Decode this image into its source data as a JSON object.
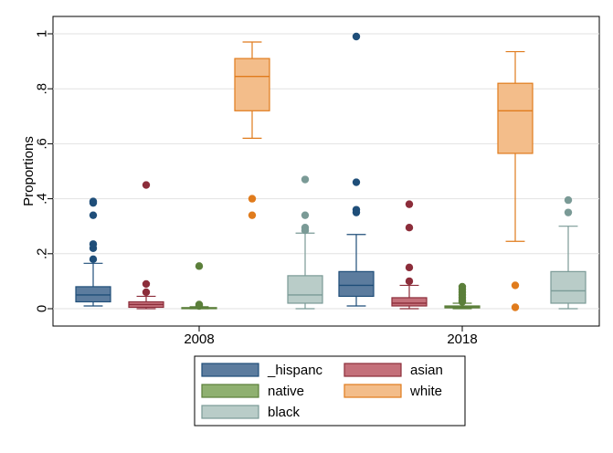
{
  "chart_data": {
    "type": "box",
    "ylabel": "Proportions",
    "ylim": [
      0,
      1
    ],
    "yticks": [
      {
        "value": 0,
        "label": "0"
      },
      {
        "value": 0.2,
        "label": ".2"
      },
      {
        "value": 0.4,
        "label": ".4"
      },
      {
        "value": 0.6,
        "label": ".6"
      },
      {
        "value": 0.8,
        "label": ".8"
      },
      {
        "value": 1,
        "label": "1"
      }
    ],
    "grid": true,
    "legend_position": "bottom",
    "categories": [
      "2008",
      "2018"
    ],
    "series": [
      {
        "name": "_hispanc",
        "color": "#1f4e79",
        "fill": "#5c7c9e",
        "boxes": [
          {
            "whisker_low": 0.01,
            "q1": 0.025,
            "median": 0.05,
            "q3": 0.08,
            "whisker_high": 0.165,
            "outliers": [
              0.18,
              0.22,
              0.235,
              0.34,
              0.385,
              0.39
            ]
          },
          {
            "whisker_low": 0.01,
            "q1": 0.045,
            "median": 0.085,
            "q3": 0.135,
            "whisker_high": 0.27,
            "outliers": [
              0.35,
              0.36,
              0.46,
              0.99
            ]
          }
        ]
      },
      {
        "name": "asian",
        "color": "#8c2d3a",
        "fill": "#c4707a",
        "boxes": [
          {
            "whisker_low": 0.0,
            "q1": 0.005,
            "median": 0.015,
            "q3": 0.025,
            "whisker_high": 0.045,
            "outliers": [
              0.06,
              0.09,
              0.45
            ]
          },
          {
            "whisker_low": 0.0,
            "q1": 0.01,
            "median": 0.02,
            "q3": 0.04,
            "whisker_high": 0.085,
            "outliers": [
              0.1,
              0.15,
              0.295,
              0.38
            ]
          }
        ]
      },
      {
        "name": "native",
        "color": "#5b7f3a",
        "fill": "#8fb070",
        "boxes": [
          {
            "whisker_low": 0.0,
            "q1": 0.0,
            "median": 0.002,
            "q3": 0.004,
            "whisker_high": 0.007,
            "outliers": [
              0.01,
              0.015,
              0.155
            ]
          },
          {
            "whisker_low": 0.0,
            "q1": 0.003,
            "median": 0.006,
            "q3": 0.01,
            "whisker_high": 0.02,
            "outliers": [
              0.025,
              0.03,
              0.04,
              0.05,
              0.06,
              0.07,
              0.08
            ]
          }
        ]
      },
      {
        "name": "white",
        "color": "#e07b1c",
        "fill": "#f3bd8a",
        "boxes": [
          {
            "whisker_low": 0.62,
            "q1": 0.72,
            "median": 0.845,
            "q3": 0.91,
            "whisker_high": 0.97,
            "outliers": [
              0.34,
              0.4
            ]
          },
          {
            "whisker_low": 0.245,
            "q1": 0.565,
            "median": 0.72,
            "q3": 0.82,
            "whisker_high": 0.935,
            "outliers": [
              0.005,
              0.085
            ]
          }
        ]
      },
      {
        "name": "black",
        "color": "#7a9a96",
        "fill": "#b9ccc8",
        "boxes": [
          {
            "whisker_low": 0.0,
            "q1": 0.02,
            "median": 0.05,
            "q3": 0.12,
            "whisker_high": 0.275,
            "outliers": [
              0.285,
              0.295,
              0.34,
              0.47
            ]
          },
          {
            "whisker_low": 0.0,
            "q1": 0.02,
            "median": 0.065,
            "q3": 0.135,
            "whisker_high": 0.3,
            "outliers": [
              0.35,
              0.395
            ]
          }
        ]
      }
    ]
  }
}
